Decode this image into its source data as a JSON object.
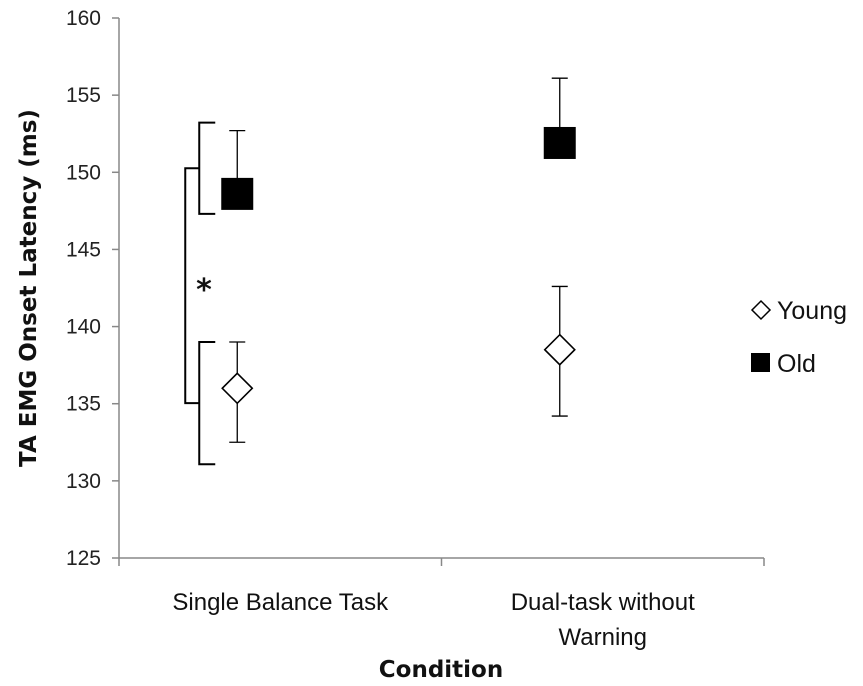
{
  "chart_data": {
    "type": "scatter",
    "xlabel": "Condition",
    "ylabel": "TA EMG Onset Latency (ms)",
    "ylim": [
      125,
      160
    ],
    "yticks": [
      125,
      130,
      135,
      140,
      145,
      150,
      155,
      160
    ],
    "categories": [
      {
        "lines": [
          "Single Balance Task"
        ]
      },
      {
        "lines": [
          "Dual-task without",
          "Warning"
        ]
      }
    ],
    "series": [
      {
        "name": "Young",
        "marker": "diamond-open",
        "color": "#000000",
        "values": [
          136.0,
          138.5
        ],
        "error_upper": [
          139.0,
          142.6
        ],
        "error_lower": [
          132.5,
          134.2
        ]
      },
      {
        "name": "Old",
        "marker": "square-filled",
        "color": "#000000",
        "values": [
          148.6,
          151.9
        ],
        "error_upper": [
          152.7,
          156.1
        ],
        "error_lower": [
          148.6,
          151.9
        ]
      }
    ],
    "significance": {
      "label": "*"
    },
    "grid": false,
    "legend_position": "right"
  }
}
